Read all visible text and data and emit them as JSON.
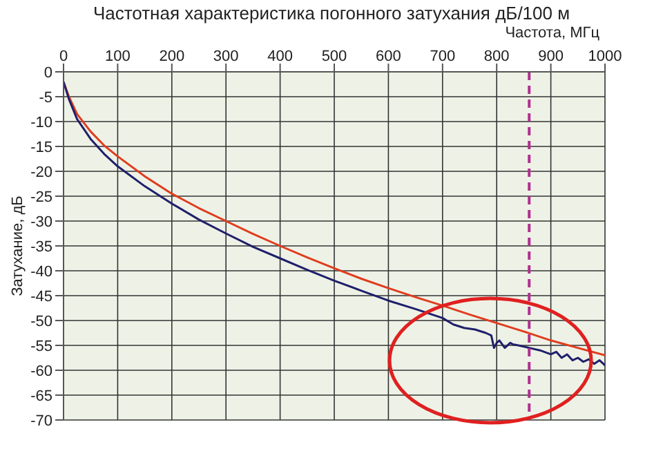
{
  "chart_data": {
    "type": "line",
    "title": "Частотная характеристика погонного затухания дБ/100 м",
    "xlabel": "Частота, МГц",
    "ylabel": "Затухание, дБ",
    "series": [
      {
        "color": "#e03c1e",
        "x": [
          0,
          10,
          25,
          50,
          75,
          100,
          150,
          200,
          250,
          300,
          350,
          400,
          450,
          500,
          550,
          600,
          650,
          700,
          750,
          800,
          850,
          900,
          950,
          1000
        ],
        "values": [
          -2,
          -5,
          -8.5,
          -12,
          -14.8,
          -17,
          -21,
          -24.5,
          -27.4,
          -30,
          -32.6,
          -35,
          -37.3,
          -39.5,
          -41.6,
          -43.5,
          -45.3,
          -47,
          -48.8,
          -50.5,
          -52.2,
          -54,
          -55.5,
          -57
        ]
      },
      {
        "color": "#1f1f6b",
        "x": [
          0,
          10,
          25,
          50,
          75,
          100,
          150,
          200,
          250,
          300,
          350,
          400,
          450,
          500,
          550,
          600,
          650,
          700,
          720,
          740,
          760,
          780,
          790,
          795,
          800,
          805,
          815,
          825,
          830,
          840,
          860,
          880,
          900,
          910,
          920,
          930,
          940,
          950,
          960,
          970,
          980,
          990,
          1000
        ],
        "values": [
          -2,
          -5.5,
          -9.5,
          -13.5,
          -16.5,
          -19,
          -23,
          -26.5,
          -29.7,
          -32.5,
          -35.2,
          -37.5,
          -39.8,
          -42,
          -44,
          -46,
          -47.7,
          -49.5,
          -50.8,
          -51.5,
          -51.8,
          -52.5,
          -53,
          -55.5,
          -54.5,
          -54,
          -55.5,
          -54.5,
          -54.8,
          -55,
          -55.5,
          -56,
          -56.8,
          -56.3,
          -57.5,
          -56.8,
          -58,
          -57.5,
          -58.3,
          -57.8,
          -58.7,
          -58,
          -59
        ]
      }
    ],
    "xlim": [
      0,
      1000
    ],
    "xticks": [
      0,
      100,
      200,
      300,
      400,
      500,
      600,
      700,
      800,
      900,
      1000
    ],
    "ylim": [
      -70,
      0
    ],
    "yticks": [
      -70,
      -65,
      -60,
      -55,
      -50,
      -45,
      -40,
      -35,
      -30,
      -25,
      -20,
      -15,
      -10,
      -5,
      0
    ],
    "ref_lines": [
      {
        "axis": "x",
        "value": 860,
        "color": "#b0308f",
        "line_style": "dashed"
      }
    ],
    "grid": true,
    "marker": "none",
    "line_style": "solid"
  }
}
